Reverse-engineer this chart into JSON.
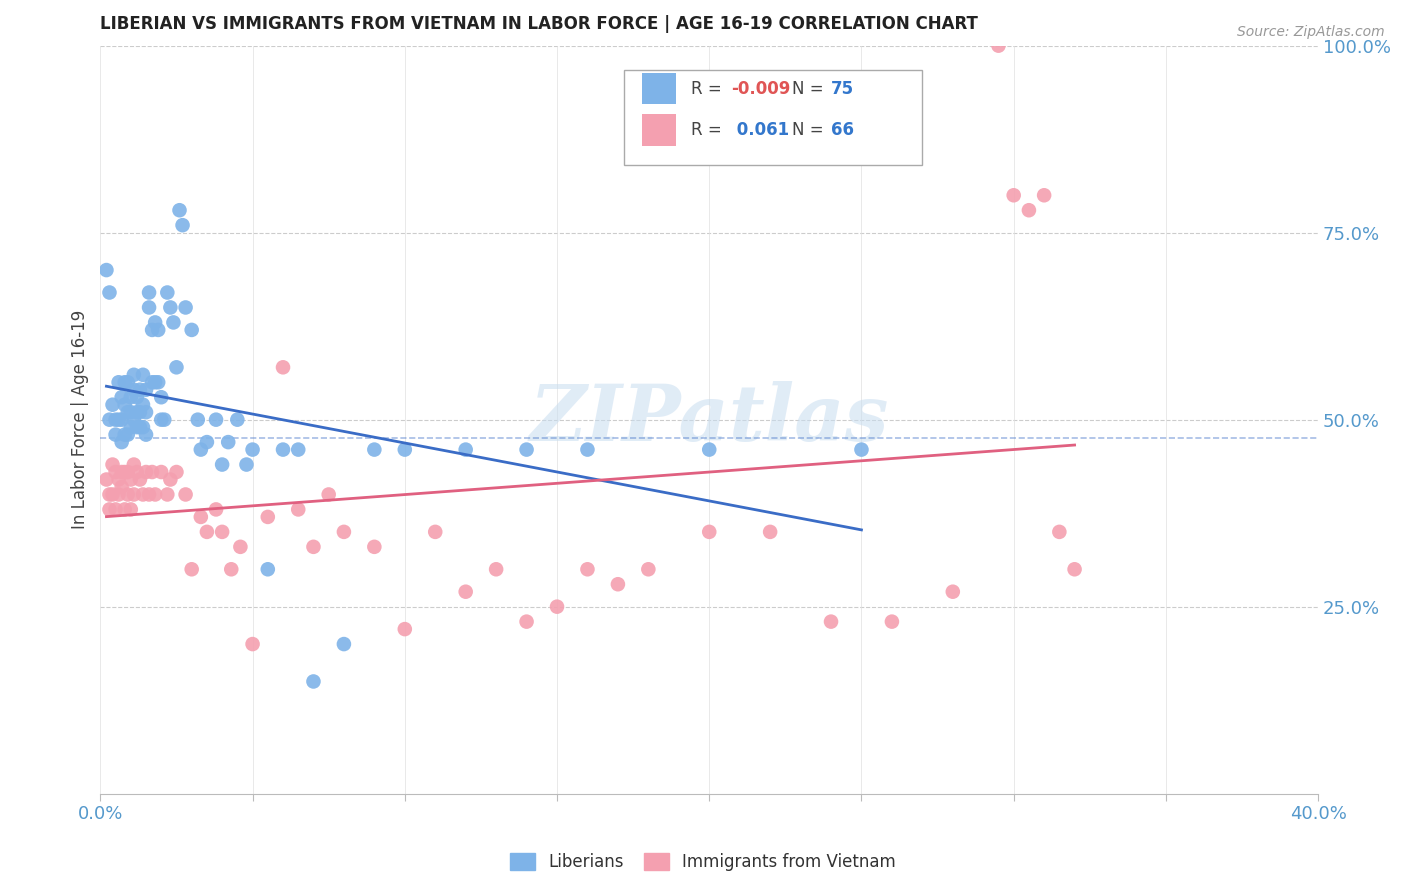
{
  "title": "LIBERIAN VS IMMIGRANTS FROM VIETNAM IN LABOR FORCE | AGE 16-19 CORRELATION CHART",
  "source": "Source: ZipAtlas.com",
  "ylabel": "In Labor Force | Age 16-19",
  "xlim": [
    0.0,
    0.4
  ],
  "ylim": [
    0.0,
    1.0
  ],
  "liberian_color": "#7eb3e8",
  "vietnam_color": "#f4a0b0",
  "liberian_line_color": "#3a6cc6",
  "vietnam_line_color": "#e06080",
  "watermark": "ZIPatlas",
  "liberian_x": [
    0.002,
    0.003,
    0.003,
    0.004,
    0.005,
    0.005,
    0.006,
    0.006,
    0.007,
    0.007,
    0.007,
    0.008,
    0.008,
    0.008,
    0.009,
    0.009,
    0.009,
    0.01,
    0.01,
    0.01,
    0.011,
    0.011,
    0.011,
    0.012,
    0.012,
    0.012,
    0.013,
    0.013,
    0.013,
    0.014,
    0.014,
    0.014,
    0.015,
    0.015,
    0.015,
    0.016,
    0.016,
    0.017,
    0.017,
    0.018,
    0.018,
    0.019,
    0.019,
    0.02,
    0.02,
    0.021,
    0.022,
    0.023,
    0.024,
    0.025,
    0.026,
    0.027,
    0.028,
    0.03,
    0.032,
    0.033,
    0.035,
    0.038,
    0.04,
    0.042,
    0.045,
    0.048,
    0.05,
    0.055,
    0.06,
    0.065,
    0.07,
    0.08,
    0.09,
    0.1,
    0.12,
    0.14,
    0.16,
    0.2,
    0.25
  ],
  "liberian_y": [
    0.7,
    0.5,
    0.67,
    0.52,
    0.5,
    0.48,
    0.55,
    0.5,
    0.53,
    0.5,
    0.47,
    0.55,
    0.52,
    0.48,
    0.55,
    0.51,
    0.48,
    0.53,
    0.51,
    0.49,
    0.56,
    0.54,
    0.5,
    0.53,
    0.51,
    0.49,
    0.54,
    0.51,
    0.49,
    0.56,
    0.52,
    0.49,
    0.54,
    0.51,
    0.48,
    0.67,
    0.65,
    0.62,
    0.55,
    0.63,
    0.55,
    0.62,
    0.55,
    0.53,
    0.5,
    0.5,
    0.67,
    0.65,
    0.63,
    0.57,
    0.78,
    0.76,
    0.65,
    0.62,
    0.5,
    0.46,
    0.47,
    0.5,
    0.44,
    0.47,
    0.5,
    0.44,
    0.46,
    0.3,
    0.46,
    0.46,
    0.15,
    0.2,
    0.46,
    0.46,
    0.46,
    0.46,
    0.46,
    0.46,
    0.46
  ],
  "vietnam_x": [
    0.002,
    0.003,
    0.003,
    0.004,
    0.004,
    0.005,
    0.005,
    0.006,
    0.006,
    0.007,
    0.007,
    0.008,
    0.008,
    0.009,
    0.009,
    0.01,
    0.01,
    0.011,
    0.011,
    0.012,
    0.013,
    0.014,
    0.015,
    0.016,
    0.017,
    0.018,
    0.02,
    0.022,
    0.023,
    0.025,
    0.028,
    0.03,
    0.033,
    0.035,
    0.038,
    0.04,
    0.043,
    0.046,
    0.05,
    0.055,
    0.06,
    0.065,
    0.07,
    0.075,
    0.08,
    0.09,
    0.1,
    0.11,
    0.12,
    0.13,
    0.14,
    0.15,
    0.16,
    0.17,
    0.18,
    0.2,
    0.22,
    0.24,
    0.26,
    0.28,
    0.295,
    0.3,
    0.305,
    0.31,
    0.315,
    0.32
  ],
  "vietnam_y": [
    0.42,
    0.4,
    0.38,
    0.44,
    0.4,
    0.43,
    0.38,
    0.42,
    0.4,
    0.43,
    0.41,
    0.43,
    0.38,
    0.43,
    0.4,
    0.42,
    0.38,
    0.44,
    0.4,
    0.43,
    0.42,
    0.4,
    0.43,
    0.4,
    0.43,
    0.4,
    0.43,
    0.4,
    0.42,
    0.43,
    0.4,
    0.3,
    0.37,
    0.35,
    0.38,
    0.35,
    0.3,
    0.33,
    0.2,
    0.37,
    0.57,
    0.38,
    0.33,
    0.4,
    0.35,
    0.33,
    0.22,
    0.35,
    0.27,
    0.3,
    0.23,
    0.25,
    0.3,
    0.28,
    0.3,
    0.35,
    0.35,
    0.23,
    0.23,
    0.27,
    1.0,
    0.8,
    0.78,
    0.8,
    0.35,
    0.3
  ],
  "ref_line_y": 0.475,
  "ref_line_xstart": 0.0,
  "ref_line_xend": 0.4
}
